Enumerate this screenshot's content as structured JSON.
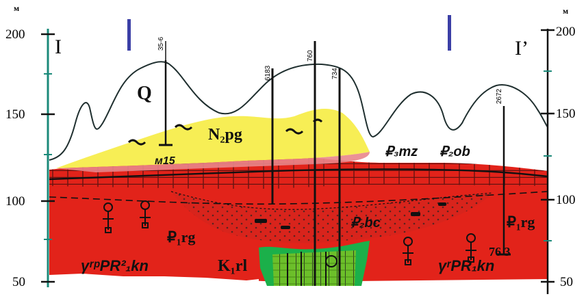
{
  "axis": {
    "unit": "м",
    "ticks": [
      "200",
      "150",
      "100",
      "50"
    ]
  },
  "section": {
    "left_label": "I",
    "right_label": "I’"
  },
  "wells": [
    {
      "label": "35-6"
    },
    {
      "label": "6183"
    },
    {
      "label": "760"
    },
    {
      "label": "734"
    },
    {
      "label": "2672"
    }
  ],
  "units": {
    "q": "Q",
    "n2pg": "N₂pg",
    "p3mz": "₽₃mz",
    "p2ob": "₽₂ob",
    "p1rg_left": "₽₁rg",
    "p1rg_right": "₽₁rg",
    "p2bc": "₽₂bc",
    "k1rl": "K₁rl",
    "gamma_left": "γʳᵖPR²₁kn",
    "gamma_right": "γʳPR₁kn",
    "m15": "м15",
    "label_763": "76 3"
  },
  "colors": {
    "red": "#e2231a",
    "yellow": "#f7ee55",
    "green": "#1bb04a",
    "outline": "#1f2f2f",
    "marker_blue": "#3b3fa6"
  }
}
